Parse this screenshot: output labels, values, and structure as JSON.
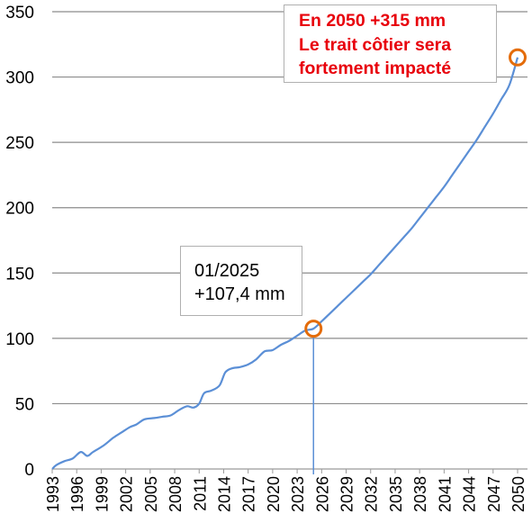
{
  "chart_data": {
    "type": "line",
    "xlim": [
      1993,
      2050
    ],
    "ylim": [
      0,
      350
    ],
    "y_ticks": [
      0,
      50,
      100,
      150,
      200,
      250,
      300,
      350
    ],
    "x_tick_labels": [
      "1993",
      "1996",
      "1999",
      "2002",
      "2005",
      "2008",
      "2011",
      "2014",
      "2017",
      "2020",
      "2023",
      "2026",
      "2029",
      "2032",
      "2035",
      "2038",
      "2041",
      "2044",
      "2047",
      "2050"
    ],
    "grid": "horizontal",
    "line_color": "#5b8fd6",
    "marker_color": "#e46c0a",
    "series": [
      {
        "points": [
          [
            1993.0,
            0
          ],
          [
            1993.5,
            3
          ],
          [
            1994.5,
            6
          ],
          [
            1995.5,
            8
          ],
          [
            1996.5,
            13
          ],
          [
            1997.3,
            10
          ],
          [
            1998.0,
            13
          ],
          [
            1999.3,
            18
          ],
          [
            2000.5,
            24
          ],
          [
            2001.5,
            28
          ],
          [
            2002.5,
            32
          ],
          [
            2003.3,
            34
          ],
          [
            2004.3,
            38
          ],
          [
            2005.5,
            39
          ],
          [
            2006.5,
            40
          ],
          [
            2007.5,
            41
          ],
          [
            2008.5,
            45
          ],
          [
            2009.5,
            48
          ],
          [
            2010.3,
            47
          ],
          [
            2011.0,
            50
          ],
          [
            2011.6,
            58
          ],
          [
            2012.5,
            60
          ],
          [
            2013.5,
            64
          ],
          [
            2014.2,
            74
          ],
          [
            2015.0,
            77
          ],
          [
            2016.0,
            78
          ],
          [
            2017.0,
            80
          ],
          [
            2018.0,
            84
          ],
          [
            2019.0,
            90
          ],
          [
            2020.0,
            91
          ],
          [
            2021.0,
            95
          ],
          [
            2022.0,
            98
          ],
          [
            2023.0,
            102
          ],
          [
            2024.0,
            106
          ],
          [
            2025.0,
            107.4
          ],
          [
            2026,
            113
          ],
          [
            2027,
            119
          ],
          [
            2028,
            125
          ],
          [
            2029,
            131
          ],
          [
            2030,
            137
          ],
          [
            2031,
            143
          ],
          [
            2032,
            149
          ],
          [
            2033,
            156
          ],
          [
            2034,
            163
          ],
          [
            2035,
            170
          ],
          [
            2036,
            177
          ],
          [
            2037,
            184
          ],
          [
            2038,
            192
          ],
          [
            2039,
            200
          ],
          [
            2040,
            208
          ],
          [
            2041,
            216
          ],
          [
            2042,
            225
          ],
          [
            2043,
            234
          ],
          [
            2044,
            243
          ],
          [
            2045,
            252
          ],
          [
            2046,
            262
          ],
          [
            2047,
            272
          ],
          [
            2048,
            283
          ],
          [
            2049,
            294
          ],
          [
            2050,
            315
          ]
        ]
      }
    ],
    "highlights": [
      {
        "x": 2025.0,
        "y": 107.4,
        "note_lines": [
          "01/2025",
          "+107,4 mm"
        ]
      },
      {
        "x": 2050.0,
        "y": 315,
        "note_lines": [
          "En 2050 +315 mm",
          "Le trait côtier sera",
          "fortement impacté"
        ]
      }
    ],
    "vertical_marker_x": 2025.0
  }
}
